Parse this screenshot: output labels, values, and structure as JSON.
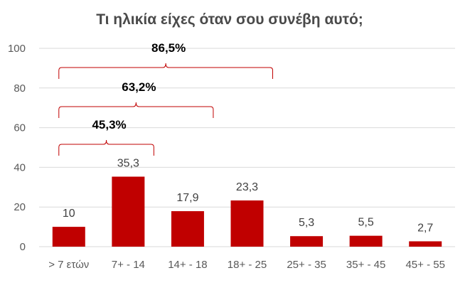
{
  "chart_data": {
    "type": "bar",
    "title": "Τι ηλικία είχες όταν σου συνέβη αυτό;",
    "categories": [
      "> 7 ετών",
      "7+ - 14",
      "14+ - 18",
      "18+ - 25",
      "25+ - 35",
      "35+ - 45",
      "45+ - 55"
    ],
    "values": [
      10,
      35.3,
      17.9,
      23.3,
      5.3,
      5.5,
      2.7
    ],
    "value_labels": [
      "10",
      "35,3",
      "17,9",
      "23,3",
      "5,3",
      "5,5",
      "2,7"
    ],
    "ylim": [
      0,
      100
    ],
    "yticks": [
      0,
      20,
      40,
      60,
      80,
      100
    ],
    "grid": true,
    "bar_color": "#c00000",
    "annotations": [
      {
        "label": "45,3%",
        "from_category": 0,
        "to_category": 1
      },
      {
        "label": "63,2%",
        "from_category": 0,
        "to_category": 2
      },
      {
        "label": "86,5%",
        "from_category": 0,
        "to_category": 3
      }
    ]
  }
}
